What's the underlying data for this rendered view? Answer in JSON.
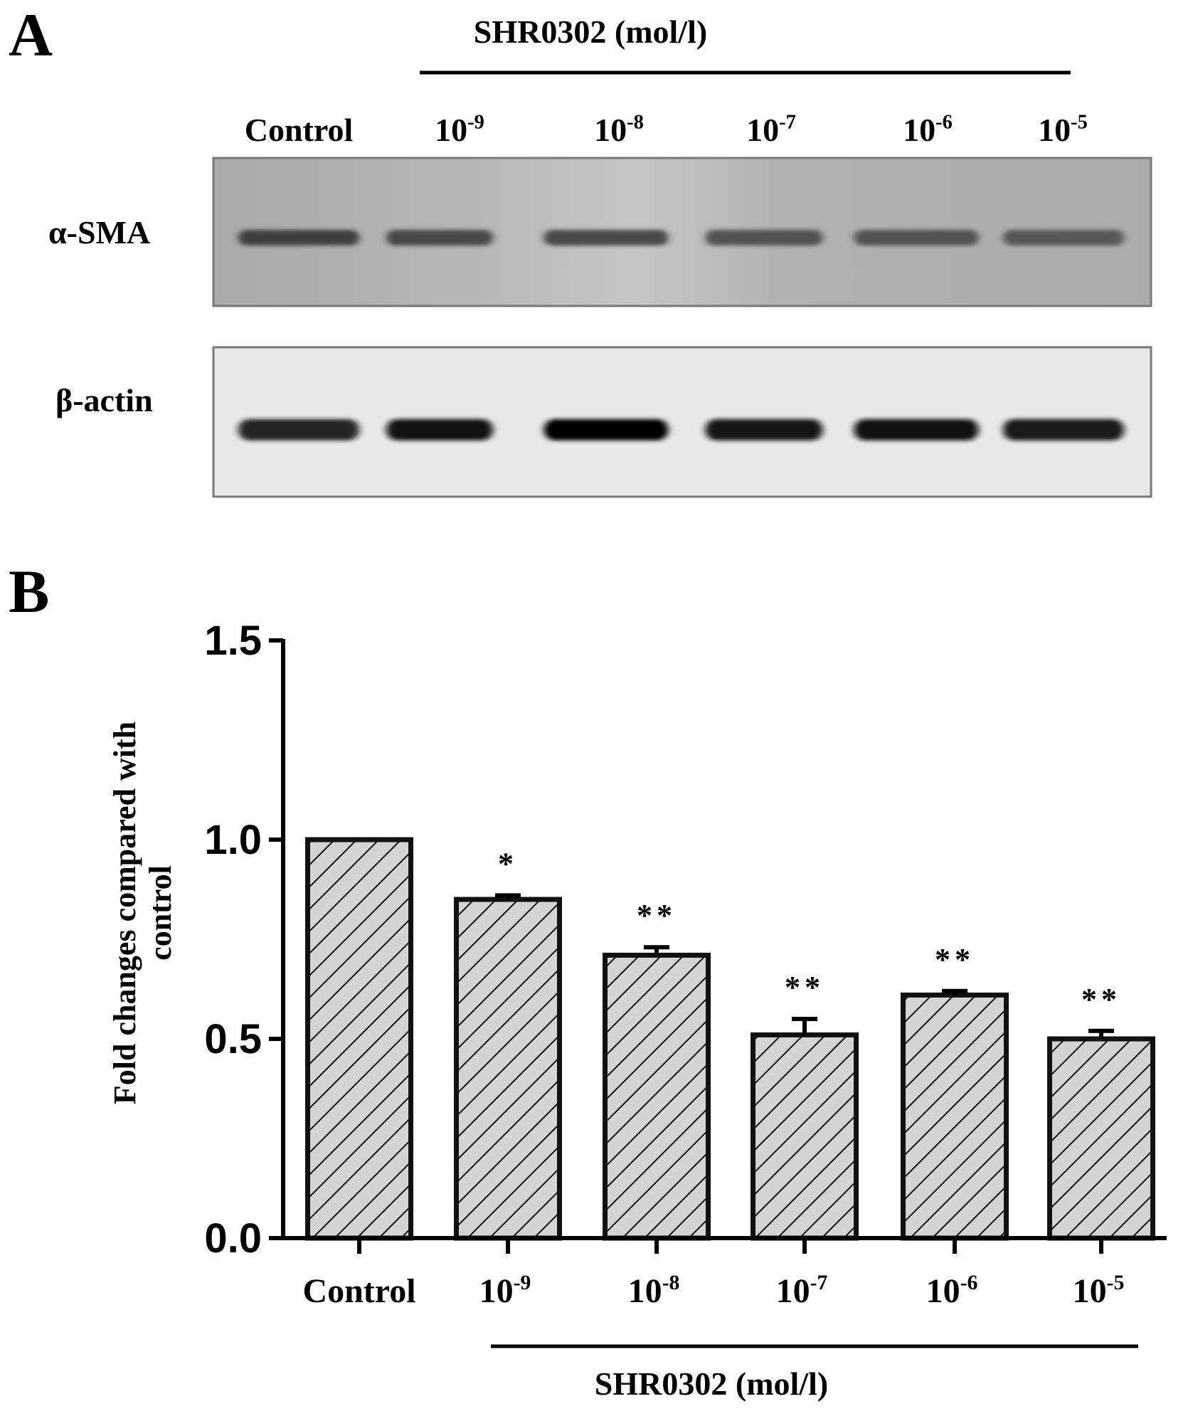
{
  "panel_a": {
    "panel_label": "A",
    "treatment_label": "SHR0302  (mol/l)",
    "lanes": [
      {
        "base": "Control",
        "exp": ""
      },
      {
        "base": "10",
        "exp": "-9"
      },
      {
        "base": "10",
        "exp": "-8"
      },
      {
        "base": "10",
        "exp": "-7"
      },
      {
        "base": "10",
        "exp": "-6"
      },
      {
        "base": "10",
        "exp": "-5"
      }
    ],
    "blots": [
      {
        "label": "α-SMA",
        "band_intensity": [
          0.62,
          0.55,
          0.58,
          0.5,
          0.48,
          0.42
        ]
      },
      {
        "label": "β-actin",
        "band_intensity": [
          0.85,
          0.95,
          1.0,
          0.92,
          0.97,
          0.88
        ]
      }
    ]
  },
  "chart_data": {
    "type": "bar",
    "panel_label": "B",
    "categories": [
      {
        "base": "Control",
        "exp": ""
      },
      {
        "base": "10",
        "exp": "-9"
      },
      {
        "base": "10",
        "exp": "-8"
      },
      {
        "base": "10",
        "exp": "-7"
      },
      {
        "base": "10",
        "exp": "-6"
      },
      {
        "base": "10",
        "exp": "-5"
      }
    ],
    "values": [
      1.0,
      0.85,
      0.71,
      0.51,
      0.61,
      0.5
    ],
    "errors": [
      0.0,
      0.01,
      0.02,
      0.04,
      0.01,
      0.02
    ],
    "significance": [
      "",
      "*",
      "**",
      "**",
      "**",
      "**"
    ],
    "ylabel": "Fold changes compared with control",
    "ylabel_lines": [
      "Fold changes compared with",
      "control"
    ],
    "xgroup_label": "SHR0302  (mol/l)",
    "ylim": [
      0,
      1.5
    ],
    "yticks": [
      "0.0",
      "0.5",
      "1.0",
      "1.5"
    ],
    "ytick_values": [
      0,
      0.5,
      1.0,
      1.5
    ],
    "grid": false,
    "colors": {
      "bar_fill": "#d4d4d4",
      "bar_edge": "#111111",
      "hatch": "#111111",
      "axis": "#000000"
    }
  }
}
